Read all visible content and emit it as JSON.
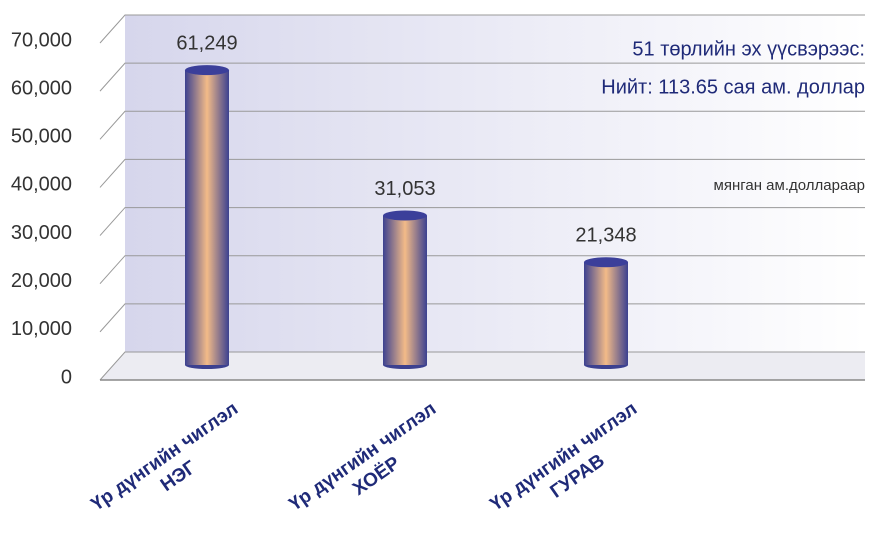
{
  "chart_data": {
    "type": "bar",
    "categories": [
      "Үр дүнгийн чиглэл\nНЭГ",
      "Үр дүнгийн чиглэл\nХОЁР",
      "Үр дүнгийн чиглэл\nГУРАВ"
    ],
    "values": [
      61249,
      31053,
      21348
    ],
    "value_labels": [
      "61,249",
      "31,053",
      "21,348"
    ],
    "ylim": [
      0,
      70000
    ],
    "yticks": [
      0,
      {
        "value": 10000,
        "label": "10,000"
      },
      {
        "value": 20000,
        "label": "20,000"
      },
      {
        "value": 30000,
        "label": "30,000"
      },
      {
        "value": 40000,
        "label": "40,000"
      },
      {
        "value": 50000,
        "label": "50,000"
      },
      {
        "value": 60000,
        "label": "60,000"
      },
      {
        "value": 70000,
        "label": "70,000"
      }
    ],
    "annotations": [
      "51 төрлийн эх үүсвэрээс:",
      "Нийт: 113.65 сая ам. доллар",
      "мянган ам.доллараар"
    ],
    "grid": true
  }
}
